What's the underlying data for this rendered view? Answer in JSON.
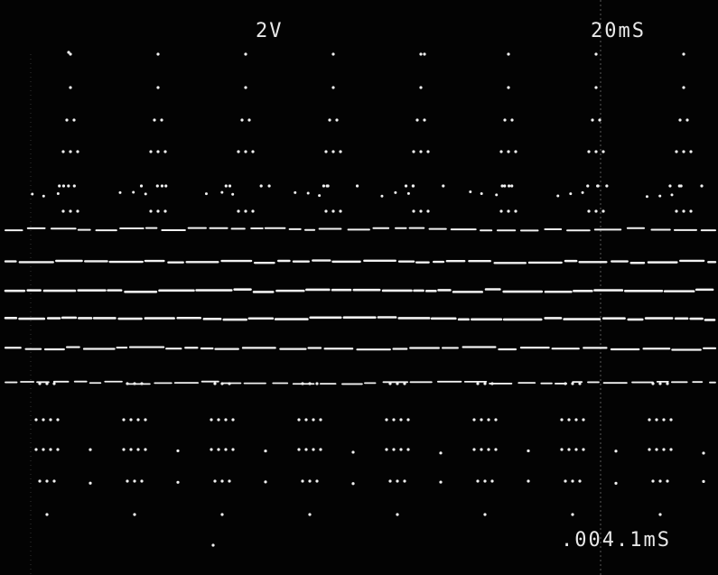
{
  "scope": {
    "volts_per_div": "2V",
    "time_per_div": "20mS",
    "cursor_time": ".004.1mS",
    "trace_color": "#f2f2f2",
    "background_color": "#030303"
  }
}
